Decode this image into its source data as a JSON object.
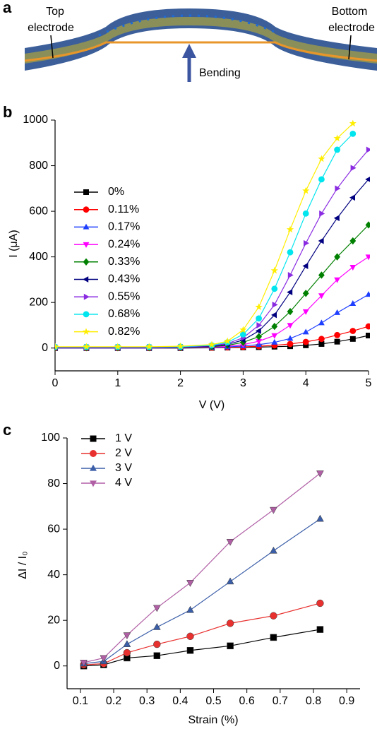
{
  "panel_labels": [
    "a",
    "b",
    "c"
  ],
  "illustration": {
    "top_electrode": [
      "Top",
      "electrode"
    ],
    "bottom_electrode": [
      "Bottom",
      "electrode"
    ],
    "arrow_label": "Bending"
  },
  "chart_data": [
    {
      "type": "line",
      "xlabel": "V (V)",
      "ylabel": "I (μA)",
      "xlim": [
        0,
        5
      ],
      "xticks": [
        0,
        1,
        2,
        3,
        4,
        5
      ],
      "ylim": [
        -100,
        1000
      ],
      "yticks": [
        0,
        200,
        400,
        600,
        800,
        1000
      ],
      "legend": "upper left",
      "x": [
        0,
        0.5,
        1,
        1.5,
        2,
        2.5,
        2.75,
        3,
        3.25,
        3.5,
        3.75,
        4,
        4.25,
        4.5,
        4.75,
        5
      ],
      "series": [
        {
          "name": "0%",
          "color": "#000000",
          "marker": "square",
          "values": [
            0,
            0,
            0,
            0,
            0,
            1,
            2,
            3,
            4,
            6,
            8,
            12,
            18,
            28,
            40,
            55
          ]
        },
        {
          "name": "0.11%",
          "color": "#ff0000",
          "marker": "circle",
          "values": [
            0,
            0,
            0,
            0,
            1,
            2,
            3,
            5,
            8,
            12,
            18,
            27,
            40,
            57,
            75,
            95
          ]
        },
        {
          "name": "0.17%",
          "color": "#1f3fff",
          "marker": "triangle-up",
          "values": [
            0,
            0,
            0,
            0,
            1,
            3,
            5,
            9,
            15,
            25,
            42,
            70,
            110,
            155,
            195,
            235
          ]
        },
        {
          "name": "0.24%",
          "color": "#ff00ff",
          "marker": "triangle-down",
          "values": [
            1,
            1,
            1,
            1,
            2,
            4,
            8,
            15,
            30,
            55,
            100,
            160,
            230,
            300,
            355,
            400
          ]
        },
        {
          "name": "0.33%",
          "color": "#008000",
          "marker": "diamond",
          "values": [
            2,
            2,
            2,
            2,
            3,
            6,
            12,
            25,
            50,
            95,
            160,
            240,
            320,
            400,
            470,
            540
          ]
        },
        {
          "name": "0.43%",
          "color": "#000080",
          "marker": "triangle-left",
          "values": [
            3,
            3,
            3,
            3,
            4,
            8,
            16,
            35,
            75,
            145,
            245,
            360,
            470,
            570,
            660,
            740
          ]
        },
        {
          "name": "0.55%",
          "color": "#8a2be2",
          "marker": "triangle-right",
          "values": [
            4,
            4,
            4,
            4,
            5,
            10,
            20,
            45,
            100,
            190,
            320,
            460,
            590,
            700,
            790,
            870
          ]
        },
        {
          "name": "0.68%",
          "color": "#00e5ee",
          "marker": "circle",
          "values": [
            5,
            5,
            5,
            5,
            6,
            12,
            25,
            60,
            130,
            260,
            420,
            590,
            740,
            870,
            940,
            null
          ]
        },
        {
          "name": "0.82%",
          "color": "#ffee00",
          "marker": "star",
          "values": [
            6,
            6,
            6,
            6,
            8,
            15,
            30,
            80,
            180,
            340,
            520,
            690,
            830,
            920,
            985,
            null
          ]
        }
      ]
    },
    {
      "type": "line",
      "xlabel": "Strain (%)",
      "ylabel": "ΔI / I₀",
      "xlim": [
        0.06,
        0.94
      ],
      "xticks": [
        0.1,
        0.2,
        0.3,
        0.4,
        0.5,
        0.6,
        0.7,
        0.8,
        0.9
      ],
      "ylim": [
        -10,
        100
      ],
      "yticks": [
        0,
        20,
        40,
        60,
        80,
        100
      ],
      "legend": "upper left",
      "x": [
        0.11,
        0.17,
        0.24,
        0.33,
        0.43,
        0.55,
        0.68,
        0.82
      ],
      "series": [
        {
          "name": "1 V",
          "color": "#000000",
          "marker": "square",
          "values": [
            0,
            0.5,
            3.5,
            4.5,
            6.8,
            8.8,
            12.5,
            16
          ]
        },
        {
          "name": "2 V",
          "color": "#e8312f",
          "marker": "circle",
          "values": [
            0.5,
            1,
            5.8,
            9.5,
            13,
            18.7,
            22,
            27.5
          ]
        },
        {
          "name": "3 V",
          "color": "#3b5ea8",
          "marker": "triangle-up",
          "values": [
            1,
            2,
            9.5,
            17,
            24.5,
            37,
            50.5,
            64.5
          ]
        },
        {
          "name": "4 V",
          "color": "#b05fa5",
          "marker": "triangle-down",
          "values": [
            1.5,
            3.5,
            13.5,
            25.5,
            36.5,
            54.5,
            68.5,
            84.5
          ]
        }
      ]
    }
  ]
}
